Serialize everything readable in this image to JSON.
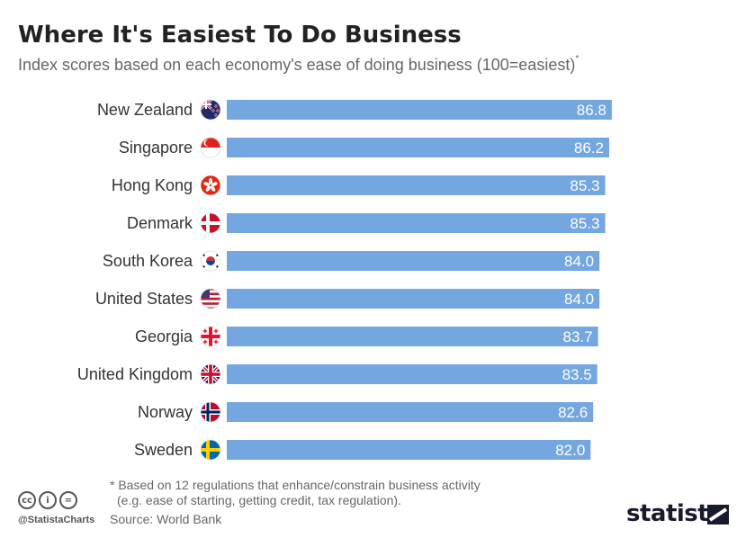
{
  "header": {
    "title": "Where It's Easiest To Do Business",
    "subtitle": "Index scores based on each economy's ease of doing business (100=easiest)",
    "subtitle_marker": "*"
  },
  "chart_data": {
    "type": "bar",
    "orientation": "horizontal",
    "categories": [
      "New Zealand",
      "Singapore",
      "Hong Kong",
      "Denmark",
      "South Korea",
      "United States",
      "Georgia",
      "United Kingdom",
      "Norway",
      "Sweden"
    ],
    "values": [
      86.8,
      86.2,
      85.3,
      85.3,
      84.0,
      84.0,
      83.7,
      83.5,
      82.6,
      82.0
    ],
    "labels": [
      "86.8",
      "86.2",
      "85.3",
      "85.3",
      "84.0",
      "84.0",
      "83.7",
      "83.5",
      "82.6",
      "82.0"
    ],
    "flags": [
      "new-zealand",
      "singapore",
      "hong-kong",
      "denmark",
      "south-korea",
      "united-states",
      "georgia",
      "united-kingdom",
      "norway",
      "sweden"
    ],
    "xlim": [
      0,
      100
    ],
    "bar_color": "#74a6e0",
    "grid": false,
    "legend": "none",
    "title": "Where It's Easiest To Do Business"
  },
  "footer": {
    "note_line1": "* Based on 12 regulations that enhance/constrain business activity",
    "note_line2": "(e.g. ease of starting, getting credit, tax regulation).",
    "source": "Source: World Bank",
    "handle": "@StatistaCharts",
    "brand": "statista",
    "cc_icons": [
      "cc",
      "by",
      "nd"
    ]
  }
}
